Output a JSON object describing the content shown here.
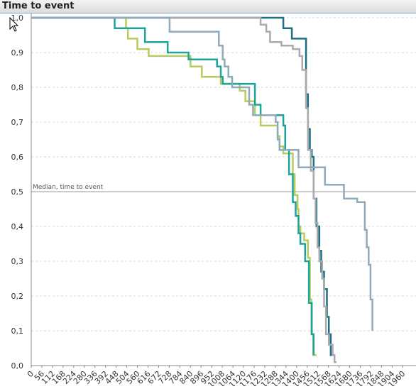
{
  "window": {
    "title": "Time to event"
  },
  "chart_data": {
    "type": "line",
    "title": "Time to event",
    "xlabel": "",
    "ylabel": "",
    "xlim": [
      0,
      2030
    ],
    "ylim": [
      0,
      1.0
    ],
    "grid": true,
    "x_ticks": [
      "0",
      "56",
      "112",
      "168",
      "224",
      "280",
      "336",
      "392",
      "448",
      "504",
      "560",
      "616",
      "672",
      "728",
      "784",
      "840",
      "896",
      "952",
      "1008",
      "1064",
      "1120",
      "1176",
      "1232",
      "1288",
      "1344",
      "1400",
      "1456",
      "1512",
      "1568",
      "1624",
      "1680",
      "1736",
      "1792",
      "1848",
      "1904",
      "1960"
    ],
    "y_ticks": [
      "0,0",
      "0,1",
      "0,2",
      "0,3",
      "0,4",
      "0,5",
      "0,6",
      "0,7",
      "0,8",
      "0,9",
      "1,0"
    ],
    "reference_line": {
      "y": 0.5,
      "label": "Median, time to event"
    },
    "series": [
      {
        "color": "#b5cc5e",
        "points": [
          [
            0,
            1.0
          ],
          [
            500,
            1.0
          ],
          [
            500,
            0.97
          ],
          [
            510,
            0.97
          ],
          [
            510,
            0.94
          ],
          [
            560,
            0.94
          ],
          [
            560,
            0.91
          ],
          [
            620,
            0.91
          ],
          [
            620,
            0.89
          ],
          [
            840,
            0.89
          ],
          [
            840,
            0.86
          ],
          [
            900,
            0.86
          ],
          [
            900,
            0.83
          ],
          [
            1000,
            0.83
          ],
          [
            1000,
            0.81
          ],
          [
            1100,
            0.81
          ],
          [
            1100,
            0.79
          ],
          [
            1130,
            0.79
          ],
          [
            1130,
            0.76
          ],
          [
            1180,
            0.76
          ],
          [
            1180,
            0.72
          ],
          [
            1210,
            0.72
          ],
          [
            1210,
            0.69
          ],
          [
            1300,
            0.69
          ],
          [
            1300,
            0.66
          ],
          [
            1310,
            0.66
          ],
          [
            1310,
            0.63
          ],
          [
            1330,
            0.63
          ],
          [
            1330,
            0.61
          ],
          [
            1380,
            0.61
          ],
          [
            1380,
            0.55
          ],
          [
            1390,
            0.55
          ],
          [
            1390,
            0.49
          ],
          [
            1405,
            0.49
          ],
          [
            1405,
            0.45
          ],
          [
            1410,
            0.45
          ],
          [
            1410,
            0.4
          ],
          [
            1420,
            0.4
          ],
          [
            1420,
            0.38
          ],
          [
            1440,
            0.38
          ],
          [
            1440,
            0.36
          ],
          [
            1460,
            0.36
          ],
          [
            1460,
            0.31
          ],
          [
            1470,
            0.31
          ],
          [
            1470,
            0.19
          ],
          [
            1478,
            0.19
          ],
          [
            1478,
            0.09
          ],
          [
            1488,
            0.09
          ],
          [
            1488,
            0.03
          ],
          [
            1505,
            0.03
          ]
        ]
      },
      {
        "color": "#1ba39c",
        "points": [
          [
            0,
            1.0
          ],
          [
            440,
            1.0
          ],
          [
            440,
            0.97
          ],
          [
            600,
            0.97
          ],
          [
            600,
            0.93
          ],
          [
            720,
            0.93
          ],
          [
            720,
            0.9
          ],
          [
            830,
            0.9
          ],
          [
            830,
            0.88
          ],
          [
            980,
            0.88
          ],
          [
            980,
            0.86
          ],
          [
            1000,
            0.86
          ],
          [
            1000,
            0.83
          ],
          [
            1010,
            0.83
          ],
          [
            1010,
            0.81
          ],
          [
            1180,
            0.81
          ],
          [
            1180,
            0.75
          ],
          [
            1210,
            0.75
          ],
          [
            1210,
            0.72
          ],
          [
            1330,
            0.72
          ],
          [
            1330,
            0.69
          ],
          [
            1340,
            0.69
          ],
          [
            1340,
            0.62
          ],
          [
            1360,
            0.62
          ],
          [
            1360,
            0.55
          ],
          [
            1380,
            0.55
          ],
          [
            1380,
            0.47
          ],
          [
            1395,
            0.47
          ],
          [
            1395,
            0.43
          ],
          [
            1410,
            0.43
          ],
          [
            1410,
            0.38
          ],
          [
            1420,
            0.38
          ],
          [
            1420,
            0.35
          ],
          [
            1445,
            0.35
          ],
          [
            1445,
            0.3
          ],
          [
            1465,
            0.3
          ],
          [
            1465,
            0.18
          ],
          [
            1480,
            0.18
          ],
          [
            1480,
            0.09
          ],
          [
            1490,
            0.09
          ],
          [
            1490,
            0.03
          ]
        ]
      },
      {
        "color": "#1c6f85",
        "points": [
          [
            0,
            1.0
          ],
          [
            1330,
            1.0
          ],
          [
            1330,
            0.97
          ],
          [
            1375,
            0.97
          ],
          [
            1375,
            0.94
          ],
          [
            1450,
            0.94
          ],
          [
            1450,
            0.78
          ],
          [
            1460,
            0.78
          ],
          [
            1460,
            0.68
          ],
          [
            1470,
            0.68
          ],
          [
            1470,
            0.62
          ],
          [
            1480,
            0.62
          ],
          [
            1480,
            0.6
          ],
          [
            1490,
            0.6
          ],
          [
            1490,
            0.48
          ],
          [
            1505,
            0.48
          ],
          [
            1505,
            0.4
          ],
          [
            1520,
            0.4
          ],
          [
            1520,
            0.33
          ],
          [
            1530,
            0.33
          ],
          [
            1530,
            0.27
          ],
          [
            1545,
            0.27
          ],
          [
            1545,
            0.22
          ],
          [
            1560,
            0.22
          ],
          [
            1560,
            0.14
          ],
          [
            1570,
            0.14
          ],
          [
            1570,
            0.09
          ],
          [
            1580,
            0.09
          ],
          [
            1580,
            0.03
          ],
          [
            1590,
            0.03
          ]
        ]
      },
      {
        "color": "#aaaaaa",
        "points": [
          [
            0,
            1.0
          ],
          [
            1210,
            1.0
          ],
          [
            1210,
            0.98
          ],
          [
            1240,
            0.98
          ],
          [
            1240,
            0.96
          ],
          [
            1260,
            0.96
          ],
          [
            1260,
            0.93
          ],
          [
            1320,
            0.93
          ],
          [
            1320,
            0.92
          ],
          [
            1380,
            0.92
          ],
          [
            1380,
            0.91
          ],
          [
            1415,
            0.91
          ],
          [
            1415,
            0.89
          ],
          [
            1430,
            0.89
          ],
          [
            1430,
            0.85
          ],
          [
            1450,
            0.85
          ],
          [
            1450,
            0.74
          ],
          [
            1460,
            0.74
          ],
          [
            1460,
            0.62
          ],
          [
            1475,
            0.62
          ],
          [
            1475,
            0.56
          ],
          [
            1490,
            0.56
          ],
          [
            1490,
            0.48
          ],
          [
            1500,
            0.48
          ],
          [
            1500,
            0.41
          ],
          [
            1510,
            0.41
          ],
          [
            1510,
            0.34
          ],
          [
            1520,
            0.34
          ],
          [
            1520,
            0.3
          ],
          [
            1535,
            0.3
          ],
          [
            1535,
            0.25
          ],
          [
            1545,
            0.25
          ],
          [
            1545,
            0.17
          ],
          [
            1555,
            0.17
          ],
          [
            1555,
            0.09
          ],
          [
            1570,
            0.09
          ],
          [
            1570,
            0.06
          ],
          [
            1590,
            0.06
          ],
          [
            1590,
            0.03
          ],
          [
            1600,
            0.03
          ],
          [
            1600,
            0.01
          ],
          [
            1610,
            0.01
          ]
        ]
      },
      {
        "color": "#8faabd",
        "points": [
          [
            0,
            1.0
          ],
          [
            730,
            1.0
          ],
          [
            730,
            0.96
          ],
          [
            990,
            0.96
          ],
          [
            990,
            0.92
          ],
          [
            1010,
            0.92
          ],
          [
            1010,
            0.88
          ],
          [
            1020,
            0.88
          ],
          [
            1020,
            0.86
          ],
          [
            1040,
            0.86
          ],
          [
            1040,
            0.83
          ],
          [
            1060,
            0.83
          ],
          [
            1060,
            0.8
          ],
          [
            1150,
            0.8
          ],
          [
            1150,
            0.75
          ],
          [
            1170,
            0.75
          ],
          [
            1170,
            0.72
          ],
          [
            1290,
            0.72
          ],
          [
            1290,
            0.7
          ],
          [
            1300,
            0.7
          ],
          [
            1300,
            0.65
          ],
          [
            1310,
            0.65
          ],
          [
            1310,
            0.62
          ],
          [
            1410,
            0.62
          ],
          [
            1410,
            0.57
          ],
          [
            1440,
            0.57
          ],
          [
            1440,
            0.57
          ],
          [
            1550,
            0.57
          ],
          [
            1550,
            0.52
          ],
          [
            1650,
            0.52
          ],
          [
            1650,
            0.48
          ],
          [
            1720,
            0.48
          ],
          [
            1720,
            0.47
          ],
          [
            1760,
            0.47
          ],
          [
            1760,
            0.39
          ],
          [
            1770,
            0.39
          ],
          [
            1770,
            0.34
          ],
          [
            1780,
            0.34
          ],
          [
            1780,
            0.29
          ],
          [
            1790,
            0.29
          ],
          [
            1790,
            0.19
          ],
          [
            1800,
            0.19
          ],
          [
            1800,
            0.1
          ]
        ]
      }
    ]
  }
}
